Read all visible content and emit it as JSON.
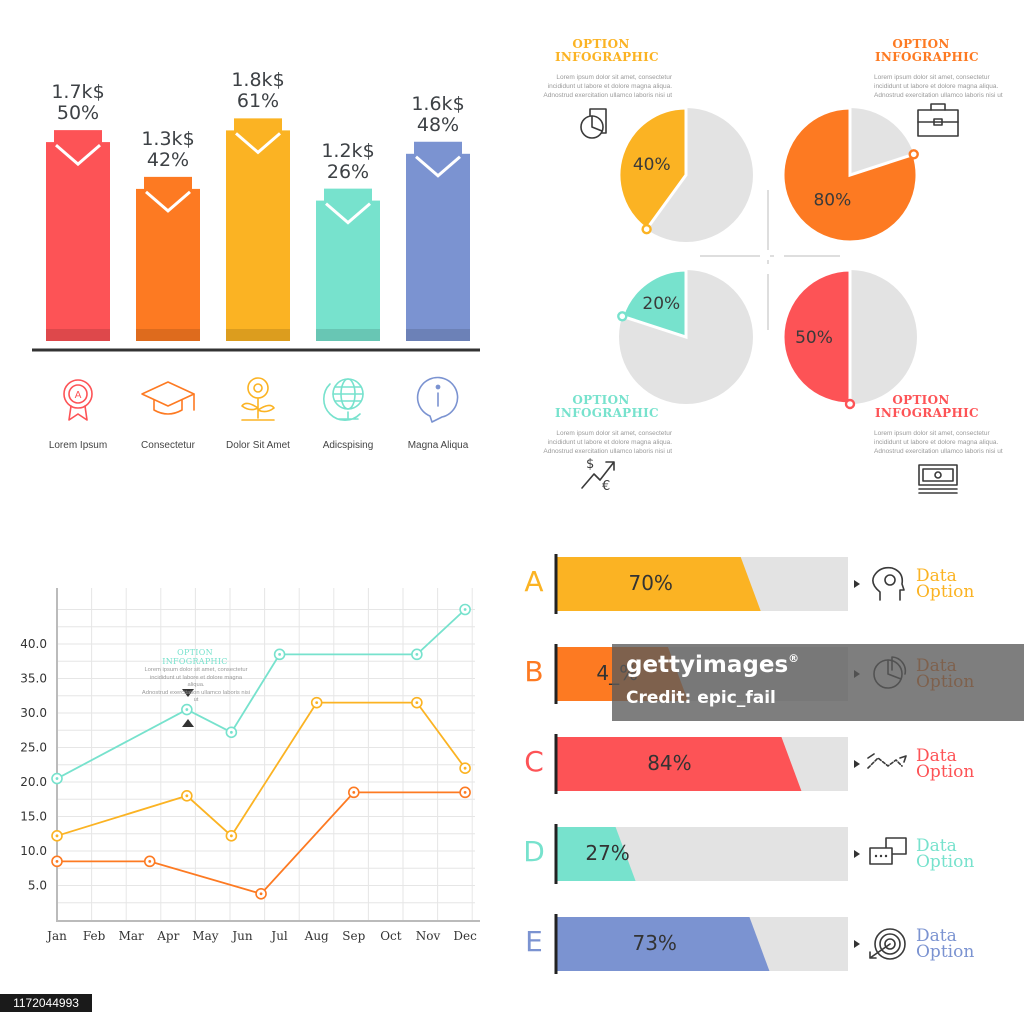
{
  "bar_chart": {
    "items": [
      {
        "value_label": "1.7k$",
        "pct_label": "50%",
        "caption": "Lorem Ipsum",
        "color": "#fd5356",
        "icon": "award-ribbon-icon"
      },
      {
        "value_label": "1.3k$",
        "pct_label": "42%",
        "caption": "Consectetur",
        "color": "#fd7a22",
        "icon": "graduation-cap-icon"
      },
      {
        "value_label": "1.8k$",
        "pct_label": "61%",
        "caption": "Dolor Sit Amet",
        "color": "#fbb323",
        "icon": "flower-icon"
      },
      {
        "value_label": "1.2k$",
        "pct_label": "26%",
        "caption": "Adicspising",
        "color": "#77e2cd",
        "icon": "globe-icon"
      },
      {
        "value_label": "1.6k$",
        "pct_label": "48%",
        "caption": "Magna Aliqua",
        "color": "#7b93d1",
        "icon": "info-bubble-icon"
      }
    ]
  },
  "pies": [
    {
      "title1": "OPTION",
      "title2": "INFOGRAPHIC",
      "lorem": [
        "Lorem ipsum dolor sit amet, consectetur",
        "incididunt ut labore et dolore magna aliqua.",
        "Adnostrud exercitation ullamco laboris nisi ut"
      ],
      "pct": 40,
      "label": "40%",
      "color": "#fbb323",
      "icon": "pie-chart-document-icon"
    },
    {
      "title1": "OPTION",
      "title2": "INFOGRAPHIC",
      "lorem": [
        "Lorem ipsum dolor sit amet, consectetur",
        "incididunt ut labore et dolore magna aliqua.",
        "Adnostrud exercitation ullamco laboris nisi ut"
      ],
      "pct": 80,
      "label": "80%",
      "color": "#fd7a22",
      "icon": "briefcase-icon"
    },
    {
      "title1": "OPTION",
      "title2": "INFOGRAPHIC",
      "lorem": [
        "Lorem ipsum dolor sit amet, consectetur",
        "incididunt ut labore et dolore magna aliqua.",
        "Adnostrud exercitation ullamco laboris nisi ut"
      ],
      "pct": 20,
      "label": "20%",
      "color": "#77e2cd",
      "icon": "currency-exchange-icon"
    },
    {
      "title1": "OPTION",
      "title2": "INFOGRAPHIC",
      "lorem": [
        "Lorem ipsum dolor sit amet, consectetur",
        "incididunt ut labore et dolore magna aliqua.",
        "Adnostrud exercitation ullamco laboris nisi ut"
      ],
      "pct": 50,
      "label": "50%",
      "color": "#fd5356",
      "icon": "banknote-icon"
    }
  ],
  "chart_data": [
    {
      "type": "bar",
      "categories": [
        "Lorem Ipsum",
        "Consectetur",
        "Dolor Sit Amet",
        "Adicspising",
        "Magna Aliqua"
      ],
      "values": [
        1.7,
        1.3,
        1.8,
        1.2,
        1.6
      ],
      "value_unit": "k$",
      "percent_labels": [
        50,
        42,
        61,
        26,
        48
      ],
      "title": "",
      "xlabel": "",
      "ylabel": ""
    },
    {
      "type": "pie",
      "title": "",
      "charts": [
        {
          "label": "40%",
          "value": 40
        },
        {
          "label": "80%",
          "value": 80
        },
        {
          "label": "20%",
          "value": 20
        },
        {
          "label": "50%",
          "value": 50
        }
      ]
    },
    {
      "type": "line",
      "x": [
        "Jan",
        "Feb",
        "Mar",
        "Apr",
        "May",
        "Jun",
        "Jul",
        "Aug",
        "Sep",
        "Oct",
        "Nov",
        "Dec"
      ],
      "yticks": [
        "5.0",
        "10.0",
        "15.0",
        "20.0",
        "25.0",
        "30.0",
        "35.0",
        "40.0"
      ],
      "ylim": [
        0,
        46
      ],
      "grid": true,
      "annotation": {
        "title1": "OPTION",
        "title2": "INFOGRAPHIC",
        "lorem": [
          "Lorem ipsum dolor sit amet, consectetur",
          "incididunt ut labore et dolore magna aliqua.",
          "Adnostrud exercitation ullamco laboris nisi ut"
        ]
      },
      "series": [
        {
          "color": "#77e2cd",
          "points": [
            [
              0,
              20.5
            ],
            [
              3.5,
              30.5
            ],
            [
              4.7,
              27.2
            ],
            [
              6.0,
              38.5
            ],
            [
              9.7,
              38.5
            ],
            [
              11.0,
              45.0
            ]
          ]
        },
        {
          "color": "#fbb323",
          "points": [
            [
              0,
              12.2
            ],
            [
              3.5,
              18.0
            ],
            [
              4.7,
              12.2
            ],
            [
              7.0,
              31.5
            ],
            [
              9.7,
              31.5
            ],
            [
              11.0,
              22.0
            ]
          ]
        },
        {
          "color": "#fd7a22",
          "points": [
            [
              0,
              8.5
            ],
            [
              2.5,
              8.5
            ],
            [
              5.5,
              3.8
            ],
            [
              8.0,
              18.5
            ],
            [
              11.0,
              18.5
            ]
          ]
        }
      ]
    },
    {
      "type": "bar",
      "orientation": "horizontal",
      "categories": [
        "A",
        "B",
        "C",
        "D",
        "E"
      ],
      "values": [
        70,
        45,
        84,
        27,
        73
      ],
      "percent_labels": [
        "70%",
        "4_%",
        "84%",
        "27%",
        "73%"
      ],
      "legend": [
        "Data Option",
        "Data Option",
        "Data Option",
        "Data Option",
        "Data Option"
      ]
    }
  ],
  "hbars": [
    {
      "letter": "A",
      "pct": 70,
      "label": "70%",
      "color": "#fbb323",
      "line1": "Data",
      "line2": "Option",
      "icon": "head-idea-icon"
    },
    {
      "letter": "B",
      "pct": 45,
      "label": "4_%",
      "color": "#fd7a22",
      "line1": "Data",
      "line2": "Option",
      "icon": "pie-chart-icon"
    },
    {
      "letter": "C",
      "pct": 84,
      "label": "84%",
      "color": "#fd5356",
      "line1": "Data",
      "line2": "Option",
      "icon": "trend-arrow-icon"
    },
    {
      "letter": "D",
      "pct": 27,
      "label": "27%",
      "color": "#77e2cd",
      "line1": "Data",
      "line2": "Option",
      "icon": "chat-bubbles-icon"
    },
    {
      "letter": "E",
      "pct": 73,
      "label": "73%",
      "color": "#7b93d1",
      "line1": "Data",
      "line2": "Option",
      "icon": "target-icon"
    }
  ],
  "watermark": {
    "brand": "gettyimages",
    "credit_mark": "®",
    "user": "Credit: epic_fail"
  },
  "stock_id": "1172044993",
  "colors": {
    "grey_fill": "#e3e3e3",
    "axis": "#333333",
    "grid": "#e6e6e6"
  }
}
